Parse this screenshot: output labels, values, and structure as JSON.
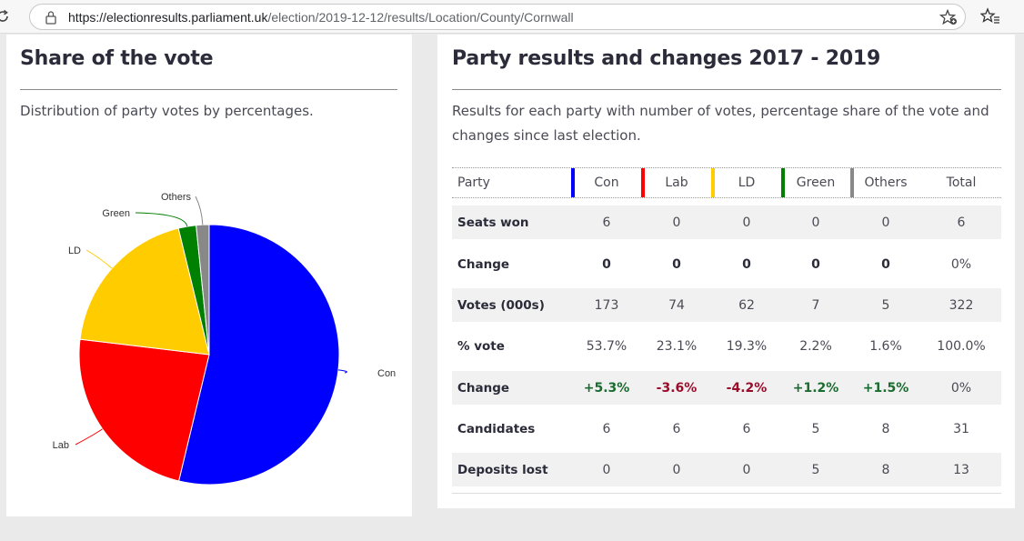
{
  "browser": {
    "url_host": "https://electionresults.parliament.uk",
    "url_path": "/election/2019-12-12/results/Location/County/Cornwall"
  },
  "share": {
    "title": "Share of the vote",
    "description": "Distribution of party votes by percentages."
  },
  "results": {
    "title": "Party results and changes 2017 - 2019",
    "description": "Results for each party with number of votes, percentage share of the vote and changes since last election.",
    "header": {
      "party": "Party",
      "total": "Total"
    },
    "parties": [
      {
        "name": "Con",
        "color": "#0000ff"
      },
      {
        "name": "Lab",
        "color": "#ff0000"
      },
      {
        "name": "LD",
        "color": "#ffcc00"
      },
      {
        "name": "Green",
        "color": "#008000"
      },
      {
        "name": "Others",
        "color": "#888888"
      }
    ],
    "rows": [
      {
        "label": "Seats won",
        "values": [
          "6",
          "0",
          "0",
          "0",
          "0",
          "6"
        ],
        "style": "plain"
      },
      {
        "label": "Change",
        "values": [
          "0",
          "0",
          "0",
          "0",
          "0",
          "0%"
        ],
        "style": "bold"
      },
      {
        "label": "Votes (000s)",
        "values": [
          "173",
          "74",
          "62",
          "7",
          "5",
          "322"
        ],
        "style": "plain"
      },
      {
        "label": "% vote",
        "values": [
          "53.7%",
          "23.1%",
          "19.3%",
          "2.2%",
          "1.6%",
          "100.0%"
        ],
        "style": "plain"
      },
      {
        "label": "Change",
        "values": [
          "+5.3%",
          "-3.6%",
          "-4.2%",
          "+1.2%",
          "+1.5%",
          "0%"
        ],
        "style": "change"
      },
      {
        "label": "Candidates",
        "values": [
          "6",
          "6",
          "6",
          "5",
          "8",
          "31"
        ],
        "style": "plain"
      },
      {
        "label": "Deposits lost",
        "values": [
          "0",
          "0",
          "0",
          "5",
          "8",
          "13"
        ],
        "style": "plain"
      }
    ]
  },
  "chart_data": {
    "type": "pie",
    "labels": [
      "Con",
      "Lab",
      "LD",
      "Green",
      "Others"
    ],
    "values": [
      53.7,
      23.1,
      19.3,
      2.2,
      1.6
    ],
    "colors": [
      "#0000ff",
      "#ff0000",
      "#ffcc00",
      "#008000",
      "#888888"
    ]
  }
}
